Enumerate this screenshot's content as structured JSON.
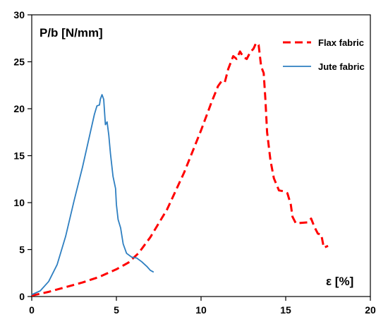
{
  "chart_data": {
    "type": "line",
    "xlabel": "ε [%]",
    "ylabel": "P/b [N/mm]",
    "xlim": [
      0,
      20
    ],
    "ylim": [
      0,
      30
    ],
    "x_ticks": [
      "0",
      "5",
      "10",
      "15",
      "20"
    ],
    "y_ticks": [
      "0",
      "5",
      "10",
      "15",
      "20",
      "25",
      "30"
    ],
    "grid": false,
    "legend_position": "top-right",
    "series": [
      {
        "name": "Flax fabric",
        "color": "#ff0000",
        "style": "dashed",
        "points": [
          [
            0,
            0.1
          ],
          [
            1,
            0.5
          ],
          [
            2,
            1.0
          ],
          [
            3,
            1.5
          ],
          [
            4,
            2.1
          ],
          [
            5,
            2.9
          ],
          [
            5.7,
            3.6
          ],
          [
            6.3,
            4.6
          ],
          [
            7,
            6.3
          ],
          [
            8,
            9.3
          ],
          [
            9,
            13.2
          ],
          [
            10,
            17.7
          ],
          [
            10.6,
            20.6
          ],
          [
            11,
            22.4
          ],
          [
            11.2,
            22.9
          ],
          [
            11.4,
            22.8
          ],
          [
            11.6,
            24.2
          ],
          [
            11.9,
            25.6
          ],
          [
            12.1,
            25.3
          ],
          [
            12.3,
            26.1
          ],
          [
            12.5,
            25.5
          ],
          [
            12.7,
            25.3
          ],
          [
            12.9,
            26.0
          ],
          [
            13.1,
            26.4
          ],
          [
            13.25,
            27.0
          ],
          [
            13.4,
            26.8
          ],
          [
            13.55,
            24.5
          ],
          [
            13.7,
            23.8
          ],
          [
            13.8,
            21.0
          ],
          [
            13.9,
            17.5
          ],
          [
            14.1,
            14.5
          ],
          [
            14.3,
            12.6
          ],
          [
            14.6,
            11.3
          ],
          [
            14.9,
            11.2
          ],
          [
            15.1,
            11.0
          ],
          [
            15.3,
            9.8
          ],
          [
            15.4,
            8.5
          ],
          [
            15.6,
            7.8
          ],
          [
            16.3,
            7.9
          ],
          [
            16.5,
            8.3
          ],
          [
            16.7,
            7.4
          ],
          [
            16.9,
            6.7
          ],
          [
            17.1,
            6.6
          ],
          [
            17.25,
            5.2
          ],
          [
            17.5,
            5.4
          ]
        ]
      },
      {
        "name": "Jute fabric",
        "color": "#2e7fc1",
        "style": "solid",
        "points": [
          [
            0,
            0.2
          ],
          [
            0.5,
            0.6
          ],
          [
            1,
            1.6
          ],
          [
            1.5,
            3.4
          ],
          [
            2,
            6.4
          ],
          [
            2.5,
            10.2
          ],
          [
            3,
            13.8
          ],
          [
            3.4,
            17.0
          ],
          [
            3.7,
            19.4
          ],
          [
            3.85,
            20.3
          ],
          [
            4.0,
            20.4
          ],
          [
            4.05,
            21.0
          ],
          [
            4.15,
            21.5
          ],
          [
            4.25,
            21.0
          ],
          [
            4.35,
            18.3
          ],
          [
            4.45,
            18.6
          ],
          [
            4.55,
            17.2
          ],
          [
            4.65,
            15.2
          ],
          [
            4.8,
            12.8
          ],
          [
            4.95,
            11.5
          ],
          [
            5.0,
            9.8
          ],
          [
            5.1,
            8.2
          ],
          [
            5.25,
            7.3
          ],
          [
            5.4,
            5.6
          ],
          [
            5.6,
            4.6
          ],
          [
            5.9,
            4.2
          ],
          [
            6.2,
            4.1
          ],
          [
            6.5,
            3.7
          ],
          [
            6.8,
            3.2
          ],
          [
            7.0,
            2.8
          ],
          [
            7.2,
            2.6
          ]
        ]
      }
    ]
  }
}
